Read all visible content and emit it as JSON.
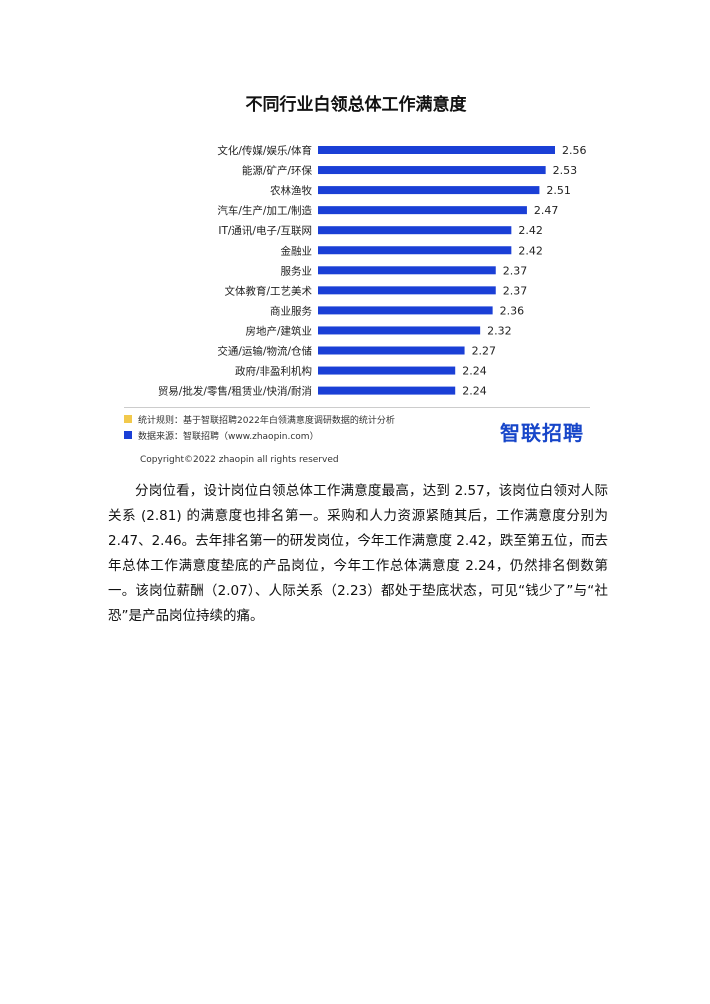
{
  "chart_data": {
    "type": "bar",
    "orientation": "horizontal",
    "title": "不同行业白领总体工作满意度",
    "categories": [
      "文化/传媒/娱乐/体育",
      "能源/矿产/环保",
      "农林渔牧",
      "汽车/生产/加工/制造",
      "IT/通讯/电子/互联网",
      "金融业",
      "服务业",
      "文体教育/工艺美术",
      "商业服务",
      "房地产/建筑业",
      "交通/运输/物流/仓储",
      "政府/非盈利机构",
      "贸易/批发/零售/租赁业/快消/耐消"
    ],
    "values": [
      2.56,
      2.53,
      2.51,
      2.47,
      2.42,
      2.42,
      2.37,
      2.37,
      2.36,
      2.32,
      2.27,
      2.24,
      2.24
    ],
    "value_labels": [
      "2.56",
      "2.53",
      "2.51",
      "2.47",
      "2.42",
      "2.42",
      "2.37",
      "2.37",
      "2.36",
      "2.32",
      "2.27",
      "2.24",
      "2.24"
    ],
    "xlim": [
      1.8,
      2.56
    ],
    "grid": false,
    "bar_color": "#1a3fd6"
  },
  "footer": {
    "legend": [
      {
        "color": "#f2c94c",
        "text": "统计规则：基于智联招聘2022年白领满意度调研数据的统计分析"
      },
      {
        "color": "#1a3fd6",
        "text": "数据来源：智联招聘（www.zhaopin.com）"
      }
    ],
    "logo_text": "智联招聘",
    "copyright": "Copyright©2022 zhaopin all rights reserved"
  },
  "body_text": "分岗位看，设计岗位白领总体工作满意度最高，达到 2.57，该岗位白领对人际关系 (2.81) 的满意度也排名第一。采购和人力资源紧随其后，工作满意度分别为 2.47、2.46。去年排名第一的研发岗位，今年工作满意度 2.42，跌至第五位，而去年总体工作满意度垫底的产品岗位，今年工作总体满意度 2.24，仍然排名倒数第一。该岗位薪酬（2.07）、人际关系（2.23）都处于垫底状态，可见“钱少了”与“社恐”是产品岗位持续的痛。"
}
